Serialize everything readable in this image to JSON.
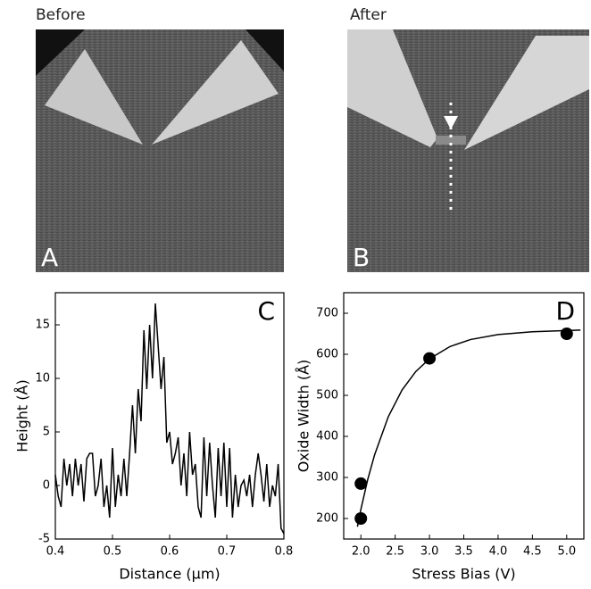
{
  "panels": [
    {
      "title": "Before",
      "label": "A"
    },
    {
      "title": "After",
      "label": "B"
    }
  ],
  "chart_data": [
    {
      "type": "line",
      "label": "C",
      "xlabel": "Distance (μm)",
      "ylabel": "Height (Å)",
      "color": "#000000",
      "x": [
        0.4,
        0.405,
        0.41,
        0.415,
        0.42,
        0.425,
        0.43,
        0.435,
        0.44,
        0.445,
        0.45,
        0.455,
        0.46,
        0.465,
        0.47,
        0.475,
        0.48,
        0.485,
        0.49,
        0.495,
        0.5,
        0.505,
        0.51,
        0.515,
        0.52,
        0.525,
        0.53,
        0.535,
        0.54,
        0.545,
        0.55,
        0.555,
        0.56,
        0.565,
        0.57,
        0.575,
        0.58,
        0.585,
        0.59,
        0.595,
        0.6,
        0.605,
        0.61,
        0.615,
        0.62,
        0.625,
        0.63,
        0.635,
        0.64,
        0.645,
        0.65,
        0.655,
        0.66,
        0.665,
        0.67,
        0.675,
        0.68,
        0.685,
        0.69,
        0.695,
        0.7,
        0.705,
        0.71,
        0.715,
        0.72,
        0.725,
        0.73,
        0.735,
        0.74,
        0.745,
        0.75,
        0.755,
        0.76,
        0.765,
        0.77,
        0.775,
        0.78,
        0.785,
        0.79,
        0.795,
        0.8
      ],
      "values": [
        1,
        -1,
        -2,
        2.5,
        0,
        2,
        -1,
        2.5,
        0,
        2,
        -1.5,
        2.5,
        3,
        3,
        -1,
        0,
        2.5,
        -2,
        0,
        -3,
        3.5,
        -2,
        1,
        -1,
        2.5,
        -1,
        3,
        7.5,
        3,
        9,
        6,
        14.5,
        9,
        15,
        10,
        17,
        13,
        9,
        12,
        4,
        5,
        2,
        3,
        4.5,
        0,
        3,
        -1,
        5,
        1,
        2,
        -2,
        -3,
        4.5,
        -1,
        4,
        0,
        -3,
        3.5,
        -1,
        4,
        -2,
        3.5,
        -3,
        1,
        -2,
        0,
        0.5,
        -1,
        1,
        -2,
        1,
        3,
        1,
        -1.5,
        2,
        -2,
        0,
        -1,
        2,
        -4,
        -4.5
      ],
      "xlim": [
        0.4,
        0.8
      ],
      "xticks": [
        0.4,
        0.5,
        0.6,
        0.7,
        0.8
      ],
      "ylim": [
        -5,
        18
      ],
      "yticks": [
        -5,
        0,
        5,
        10,
        15
      ]
    },
    {
      "type": "scatter",
      "label": "D",
      "xlabel": "Stress Bias (V)",
      "ylabel": "Oxide Width (Å)",
      "series": [
        {
          "marker": "circle",
          "color": "#000000",
          "x": [
            2.0,
            2.0,
            3.0,
            5.0
          ],
          "values": [
            200,
            285,
            590,
            650
          ]
        },
        {
          "marker": "line",
          "color": "#000000",
          "x": [
            1.95,
            2.0,
            2.1,
            2.2,
            2.4,
            2.6,
            2.8,
            3.0,
            3.3,
            3.6,
            4.0,
            4.5,
            5.0,
            5.2
          ],
          "values": [
            180,
            222,
            295,
            355,
            448,
            513,
            558,
            589,
            619,
            636,
            648,
            655,
            658,
            659
          ]
        }
      ],
      "xlim": [
        1.75,
        5.25
      ],
      "xticks": [
        {
          "value": 2,
          "label": "2.0"
        },
        2.5,
        {
          "value": 3,
          "label": "3.0"
        },
        3.5,
        {
          "value": 4,
          "label": "4.0"
        },
        4.5,
        {
          "value": 5,
          "label": "5.0"
        }
      ],
      "ylim": [
        150,
        750
      ],
      "yticks": [
        200,
        300,
        400,
        500,
        600,
        700
      ]
    }
  ]
}
